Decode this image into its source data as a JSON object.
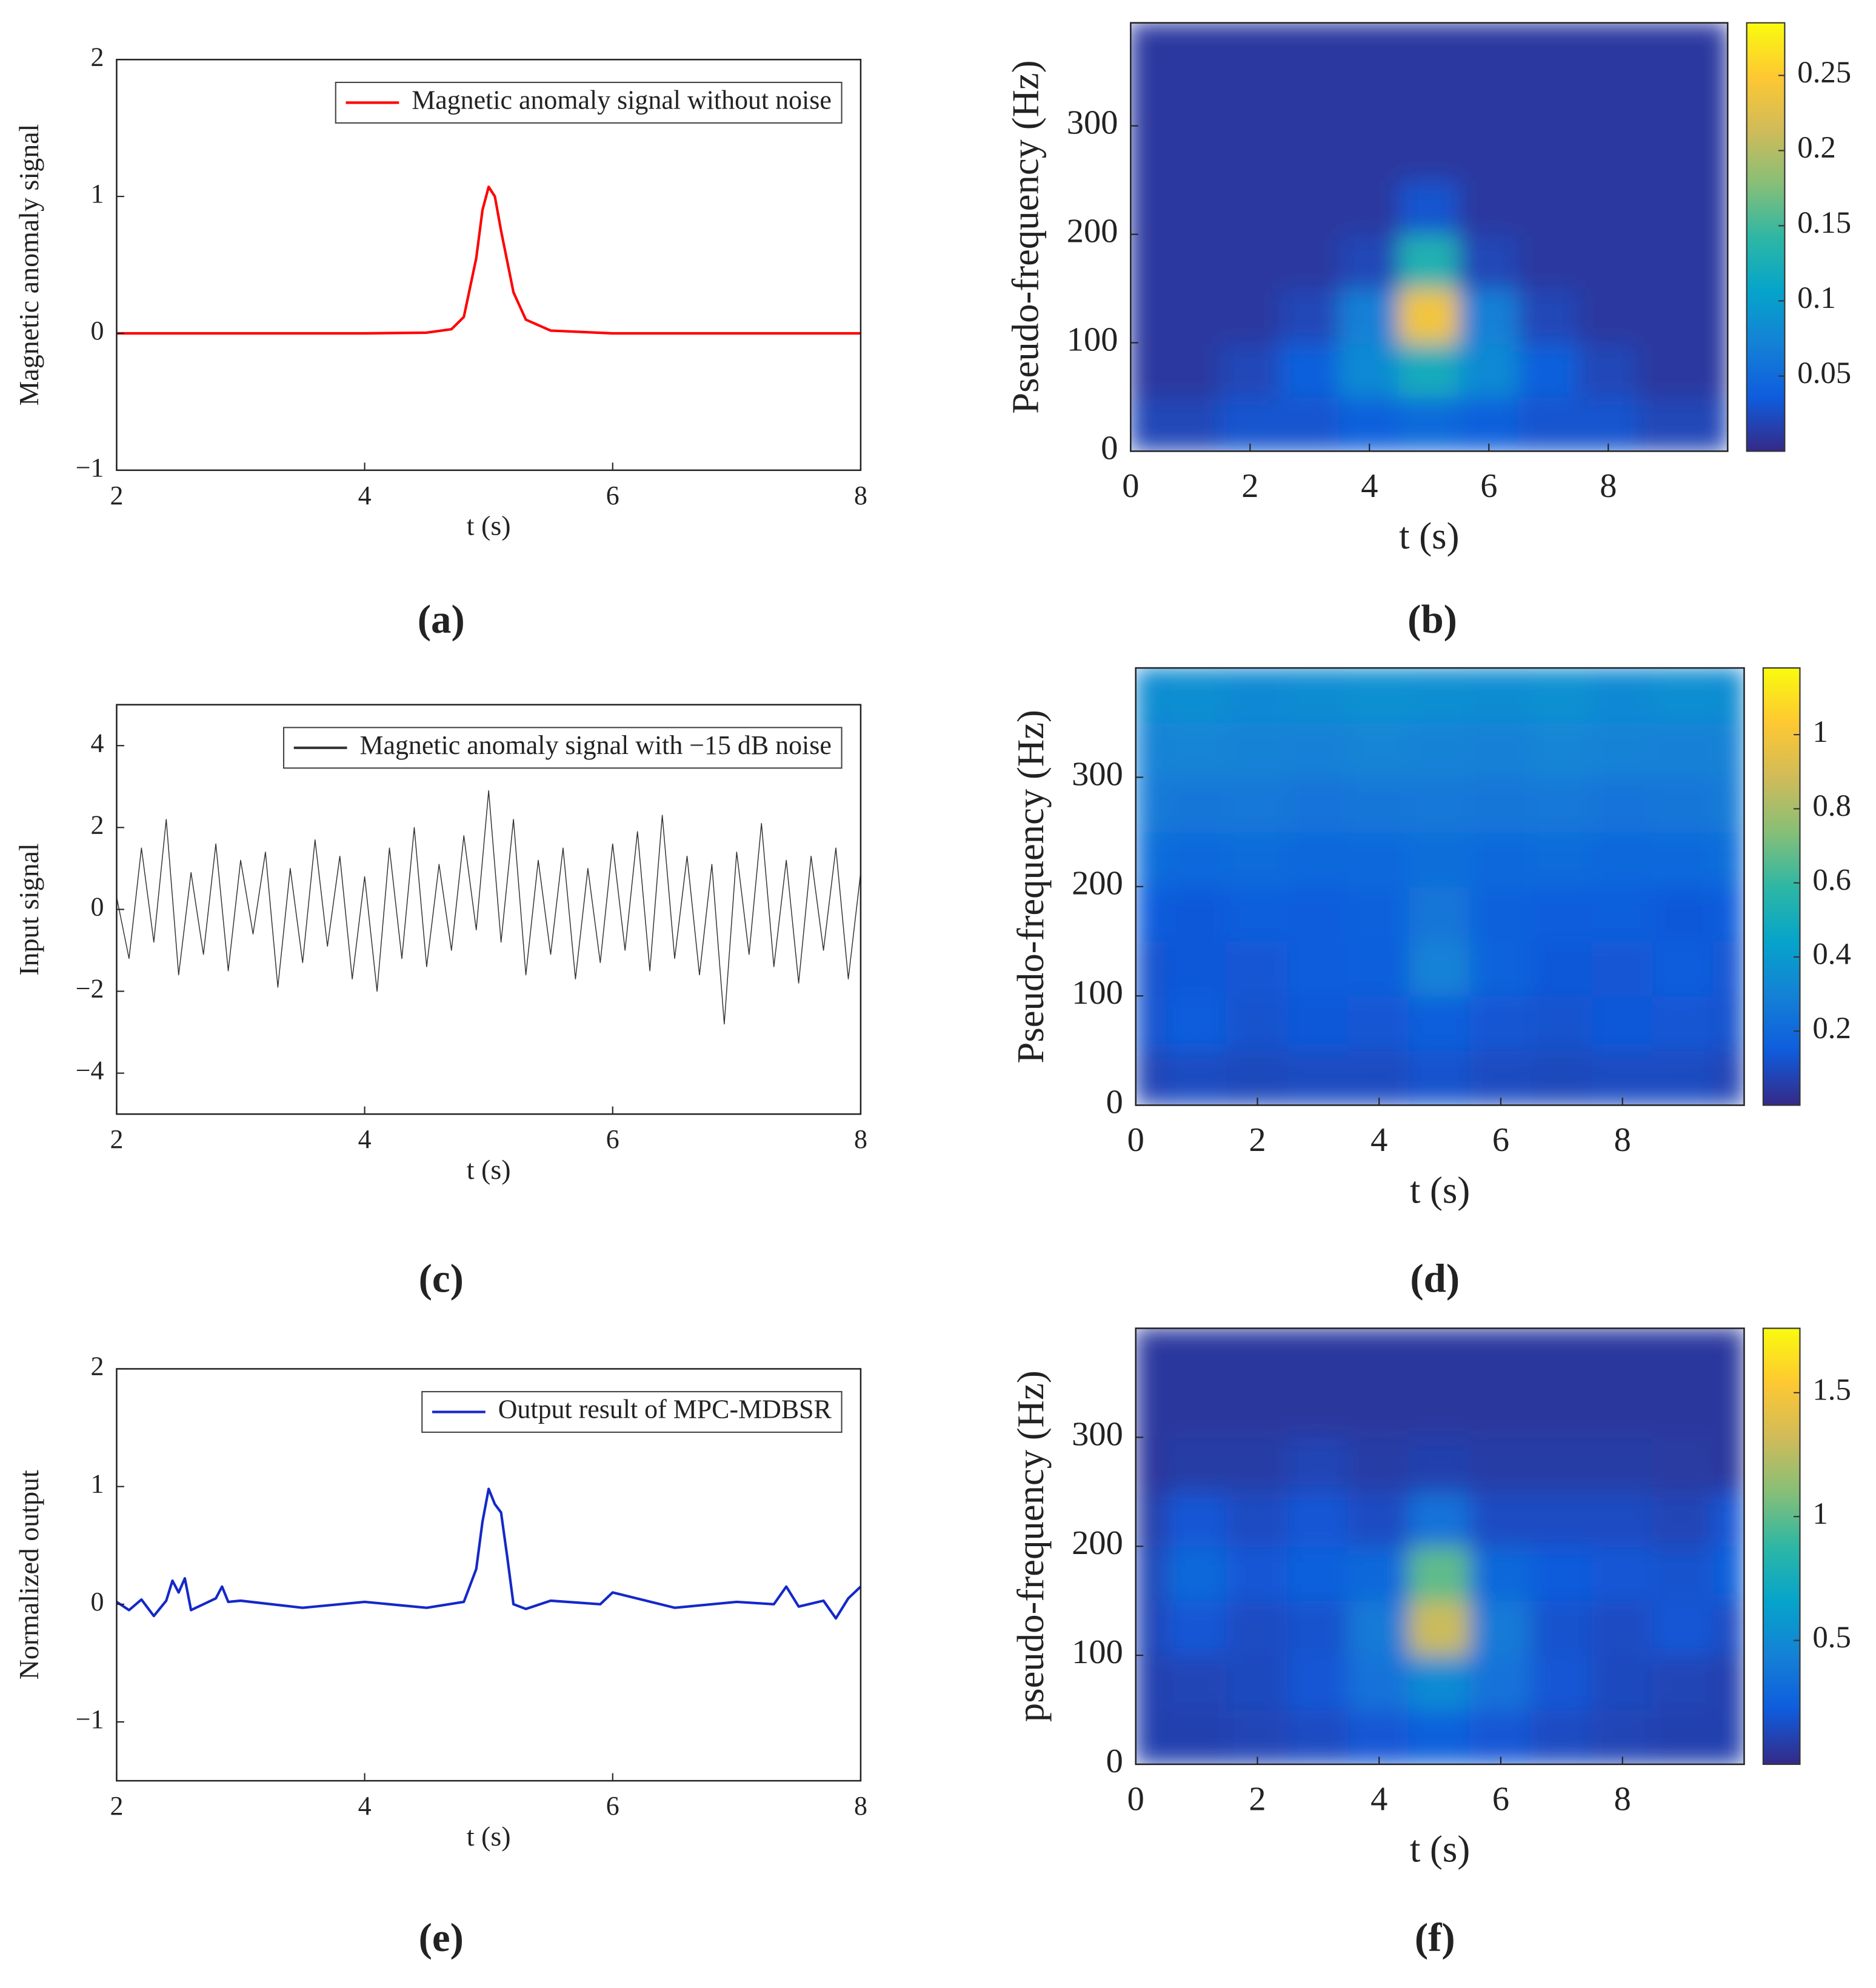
{
  "chart_data": [
    {
      "type": "line",
      "caption": "(a)",
      "xlabel": "t (s)",
      "ylabel": "Magnetic anomaly signal",
      "xlim": [
        2,
        8
      ],
      "ylim": [
        -1,
        2
      ],
      "xticks": [
        2,
        4,
        6,
        8
      ],
      "yticks": [
        {
          "value": -1,
          "label": "−1"
        },
        0,
        1,
        2
      ],
      "legend": "upper right",
      "x": [
        2,
        3,
        4,
        4.5,
        4.7,
        4.8,
        4.9,
        4.95,
        5,
        5.05,
        5.1,
        5.2,
        5.3,
        5.5,
        6,
        7,
        8
      ],
      "series": [
        {
          "name": "Magnetic anomaly signal without noise",
          "color": "#ff0000",
          "values": [
            0,
            0,
            0,
            0.005,
            0.03,
            0.12,
            0.55,
            0.9,
            1.07,
            1.0,
            0.75,
            0.3,
            0.1,
            0.02,
            0,
            0,
            0
          ]
        }
      ]
    },
    {
      "type": "heatmap",
      "caption": "(b)",
      "xlabel": "t (s)",
      "ylabel": "Pseudo-frequency (Hz)",
      "xlim": [
        0,
        10
      ],
      "ylim": [
        0,
        395
      ],
      "xticks": [
        0,
        2,
        4,
        6,
        8
      ],
      "yticks": [
        0,
        100,
        200,
        300
      ],
      "xbins": [
        0,
        0.5,
        1.5,
        2.5,
        3.5,
        4.5,
        5.5,
        6.5,
        7.5,
        8.5,
        9.5,
        10
      ],
      "ybins": [
        0,
        50,
        100,
        150,
        200,
        250,
        300,
        350,
        395
      ],
      "z": [
        [
          0.02,
          0.02,
          0.03,
          0.03,
          0.04,
          0.05,
          0.04,
          0.03,
          0.03,
          0.02,
          0.02
        ],
        [
          0.01,
          0.01,
          0.02,
          0.04,
          0.08,
          0.12,
          0.08,
          0.04,
          0.02,
          0.01,
          0.01
        ],
        [
          0.01,
          0.01,
          0.01,
          0.02,
          0.07,
          0.24,
          0.07,
          0.02,
          0.01,
          0.01,
          0.01
        ],
        [
          0.01,
          0.01,
          0.01,
          0.01,
          0.02,
          0.13,
          0.02,
          0.01,
          0.01,
          0.01,
          0.01
        ],
        [
          0.01,
          0.01,
          0.01,
          0.01,
          0.01,
          0.03,
          0.01,
          0.01,
          0.01,
          0.01,
          0.01
        ],
        [
          0.01,
          0.01,
          0.01,
          0.01,
          0.01,
          0.01,
          0.01,
          0.01,
          0.01,
          0.01,
          0.01
        ],
        [
          0.01,
          0.01,
          0.01,
          0.01,
          0.01,
          0.01,
          0.01,
          0.01,
          0.01,
          0.01,
          0.01
        ],
        [
          0.01,
          0.01,
          0.01,
          0.01,
          0.01,
          0.01,
          0.01,
          0.01,
          0.01,
          0.01,
          0.01
        ]
      ],
      "clim": [
        0,
        0.285
      ],
      "cticks": [
        0.05,
        0.1,
        0.15,
        0.2,
        0.25
      ],
      "colormap": [
        "#352a87",
        "#0f5cdd",
        "#1481d6",
        "#06a4ca",
        "#2eb7a4",
        "#87bf77",
        "#d1bb59",
        "#fec832",
        "#f9fb0e"
      ]
    },
    {
      "type": "line",
      "caption": "(c)",
      "xlabel": "t (s)",
      "ylabel": "Input signal",
      "xlim": [
        2,
        8
      ],
      "ylim": [
        -5,
        5
      ],
      "xticks": [
        2,
        4,
        6,
        8
      ],
      "yticks": [
        {
          "value": -4,
          "label": "−4"
        },
        {
          "value": -2,
          "label": "−2"
        },
        0,
        2,
        4
      ],
      "legend": "upper right",
      "x": [
        2,
        2.1,
        2.2,
        2.3,
        2.4,
        2.5,
        2.6,
        2.7,
        2.8,
        2.9,
        3,
        3.1,
        3.2,
        3.3,
        3.4,
        3.5,
        3.6,
        3.7,
        3.8,
        3.9,
        4,
        4.1,
        4.2,
        4.3,
        4.4,
        4.5,
        4.6,
        4.7,
        4.8,
        4.9,
        5,
        5.1,
        5.2,
        5.3,
        5.4,
        5.5,
        5.6,
        5.7,
        5.8,
        5.9,
        6,
        6.1,
        6.2,
        6.3,
        6.4,
        6.5,
        6.6,
        6.7,
        6.8,
        6.9,
        7,
        7.1,
        7.2,
        7.3,
        7.4,
        7.5,
        7.6,
        7.7,
        7.8,
        7.9,
        8
      ],
      "series": [
        {
          "name": "Magnetic anomaly signal with −15 dB noise",
          "color": "#333333",
          "values": [
            0.3,
            -1.2,
            1.5,
            -0.8,
            2.2,
            -1.6,
            0.9,
            -1.1,
            1.6,
            -1.5,
            1.2,
            -0.6,
            1.4,
            -1.9,
            1.0,
            -1.3,
            1.7,
            -0.9,
            1.3,
            -1.7,
            0.8,
            -2.0,
            1.5,
            -1.2,
            2.0,
            -1.4,
            1.1,
            -1.0,
            1.8,
            -0.5,
            2.9,
            -0.8,
            2.2,
            -1.6,
            1.2,
            -1.1,
            1.5,
            -1.7,
            1.0,
            -1.3,
            1.6,
            -1.0,
            1.9,
            -1.5,
            2.3,
            -1.2,
            1.3,
            -1.6,
            1.1,
            -2.8,
            1.4,
            -1.1,
            2.1,
            -1.4,
            1.2,
            -1.8,
            1.3,
            -1.0,
            1.5,
            -1.7,
            0.9
          ]
        }
      ]
    },
    {
      "type": "heatmap",
      "caption": "(d)",
      "xlabel": "t (s)",
      "ylabel": "Pseudo-frequency (Hz)",
      "xlim": [
        0,
        10
      ],
      "ylim": [
        0,
        400
      ],
      "xticks": [
        0,
        2,
        4,
        6,
        8
      ],
      "yticks": [
        0,
        100,
        200,
        300
      ],
      "xbins": [
        0,
        0.5,
        1.5,
        2.5,
        3.5,
        4.5,
        5.5,
        6.5,
        7.5,
        8.5,
        9.5,
        10
      ],
      "ybins": [
        0,
        50,
        100,
        150,
        200,
        250,
        300,
        350,
        400
      ],
      "z": [
        [
          0.08,
          0.1,
          0.09,
          0.1,
          0.1,
          0.12,
          0.1,
          0.09,
          0.1,
          0.1,
          0.08
        ],
        [
          0.12,
          0.15,
          0.12,
          0.14,
          0.13,
          0.16,
          0.13,
          0.12,
          0.14,
          0.13,
          0.12
        ],
        [
          0.12,
          0.14,
          0.13,
          0.15,
          0.16,
          0.3,
          0.18,
          0.14,
          0.13,
          0.15,
          0.13
        ],
        [
          0.15,
          0.14,
          0.16,
          0.15,
          0.17,
          0.25,
          0.17,
          0.15,
          0.16,
          0.14,
          0.15
        ],
        [
          0.22,
          0.2,
          0.21,
          0.19,
          0.2,
          0.22,
          0.2,
          0.21,
          0.19,
          0.2,
          0.22
        ],
        [
          0.27,
          0.25,
          0.26,
          0.24,
          0.25,
          0.26,
          0.25,
          0.26,
          0.24,
          0.25,
          0.27
        ],
        [
          0.3,
          0.31,
          0.3,
          0.29,
          0.31,
          0.3,
          0.29,
          0.31,
          0.3,
          0.29,
          0.3
        ],
        [
          0.34,
          0.35,
          0.33,
          0.34,
          0.36,
          0.35,
          0.34,
          0.36,
          0.33,
          0.35,
          0.34
        ]
      ],
      "clim": [
        0,
        1.18
      ],
      "cticks": [
        0.2,
        0.4,
        0.6,
        0.8,
        1
      ],
      "colormap": [
        "#352a87",
        "#0f5cdd",
        "#1481d6",
        "#06a4ca",
        "#2eb7a4",
        "#87bf77",
        "#d1bb59",
        "#fec832",
        "#f9fb0e"
      ]
    },
    {
      "type": "line",
      "caption": "(e)",
      "xlabel": "t (s)",
      "ylabel": "Normalized output",
      "xlim": [
        2,
        8
      ],
      "ylim": [
        -1.5,
        2
      ],
      "xticks": [
        2,
        4,
        6,
        8
      ],
      "yticks": [
        {
          "value": -1,
          "label": "−1"
        },
        0,
        1,
        2
      ],
      "legend": "upper right",
      "x": [
        2,
        2.1,
        2.2,
        2.3,
        2.4,
        2.45,
        2.5,
        2.55,
        2.6,
        2.8,
        2.85,
        2.9,
        3,
        3.5,
        4,
        4.5,
        4.8,
        4.9,
        4.95,
        5,
        5.05,
        5.1,
        5.15,
        5.2,
        5.3,
        5.5,
        5.9,
        6,
        6.5,
        7,
        7.3,
        7.4,
        7.5,
        7.7,
        7.8,
        7.9,
        8
      ],
      "series": [
        {
          "name": "Output result of MPC-MDBSR",
          "color": "#1428c8",
          "values": [
            0.02,
            -0.05,
            0.04,
            -0.1,
            0.03,
            0.2,
            0.1,
            0.22,
            -0.05,
            0.05,
            0.15,
            0.02,
            0.03,
            -0.03,
            0.02,
            -0.03,
            0.02,
            0.3,
            0.7,
            0.98,
            0.85,
            0.78,
            0.4,
            0.0,
            -0.04,
            0.03,
            0.0,
            0.1,
            -0.03,
            0.02,
            0.0,
            0.15,
            -0.02,
            0.03,
            -0.12,
            0.05,
            0.15
          ]
        }
      ]
    },
    {
      "type": "heatmap",
      "caption": "(f)",
      "xlabel": "t (s)",
      "ylabel": "pseudo-frequency (Hz)",
      "xlim": [
        0,
        10
      ],
      "ylim": [
        0,
        400
      ],
      "xticks": [
        0,
        2,
        4,
        6,
        8
      ],
      "yticks": [
        0,
        100,
        200,
        300
      ],
      "xbins": [
        0,
        0.5,
        1.5,
        2.5,
        3.5,
        4.5,
        5.5,
        6.5,
        7.5,
        8.5,
        9.5,
        10
      ],
      "ybins": [
        0,
        50,
        100,
        150,
        200,
        250,
        300,
        350,
        400
      ],
      "z": [
        [
          0.1,
          0.1,
          0.12,
          0.15,
          0.2,
          0.25,
          0.2,
          0.15,
          0.12,
          0.1,
          0.1
        ],
        [
          0.1,
          0.12,
          0.14,
          0.2,
          0.35,
          0.5,
          0.35,
          0.2,
          0.14,
          0.12,
          0.1
        ],
        [
          0.12,
          0.2,
          0.15,
          0.18,
          0.4,
          1.3,
          0.4,
          0.18,
          0.15,
          0.2,
          0.15
        ],
        [
          0.12,
          0.3,
          0.2,
          0.25,
          0.3,
          1.0,
          0.3,
          0.22,
          0.2,
          0.18,
          0.25
        ],
        [
          0.08,
          0.2,
          0.15,
          0.2,
          0.15,
          0.35,
          0.15,
          0.15,
          0.15,
          0.12,
          0.2
        ],
        [
          0.05,
          0.08,
          0.08,
          0.12,
          0.08,
          0.1,
          0.08,
          0.08,
          0.08,
          0.07,
          0.06
        ],
        [
          0.06,
          0.06,
          0.06,
          0.06,
          0.06,
          0.06,
          0.06,
          0.06,
          0.06,
          0.06,
          0.06
        ],
        [
          0.06,
          0.06,
          0.06,
          0.06,
          0.06,
          0.06,
          0.06,
          0.06,
          0.06,
          0.06,
          0.06
        ]
      ],
      "clim": [
        0,
        1.76
      ],
      "cticks": [
        0.5,
        1,
        1.5
      ],
      "colormap": [
        "#352a87",
        "#0f5cdd",
        "#1481d6",
        "#06a4ca",
        "#2eb7a4",
        "#87bf77",
        "#d1bb59",
        "#fec832",
        "#f9fb0e"
      ]
    }
  ]
}
